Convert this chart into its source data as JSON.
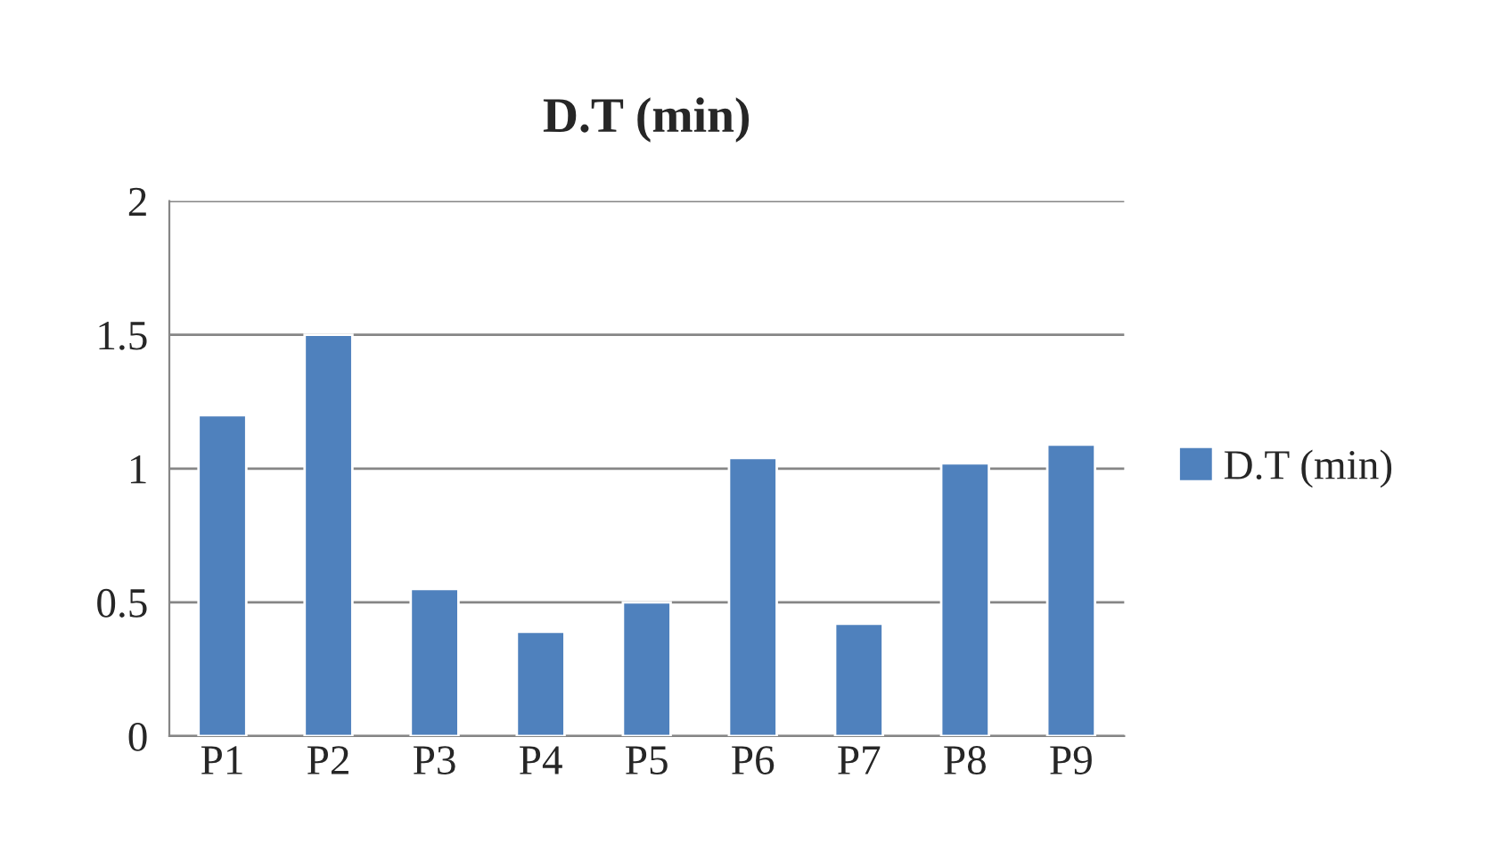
{
  "chart_data": {
    "type": "bar",
    "title": "D.T (min)",
    "categories": [
      "P1",
      "P2",
      "P3",
      "P4",
      "P5",
      "P6",
      "P7",
      "P8",
      "P9"
    ],
    "series": [
      {
        "name": "D.T (min)",
        "color": "#4f81bd",
        "values": [
          1.2,
          1.5,
          0.55,
          0.39,
          0.5,
          1.04,
          0.42,
          1.02,
          1.09
        ]
      }
    ],
    "ylim": [
      0,
      2
    ],
    "yticks": [
      0,
      {
        "value": 0.5,
        "label": "0.5"
      },
      1,
      {
        "value": 1.5,
        "label": "1.5"
      },
      2
    ],
    "grid": "y",
    "legend": "right"
  }
}
